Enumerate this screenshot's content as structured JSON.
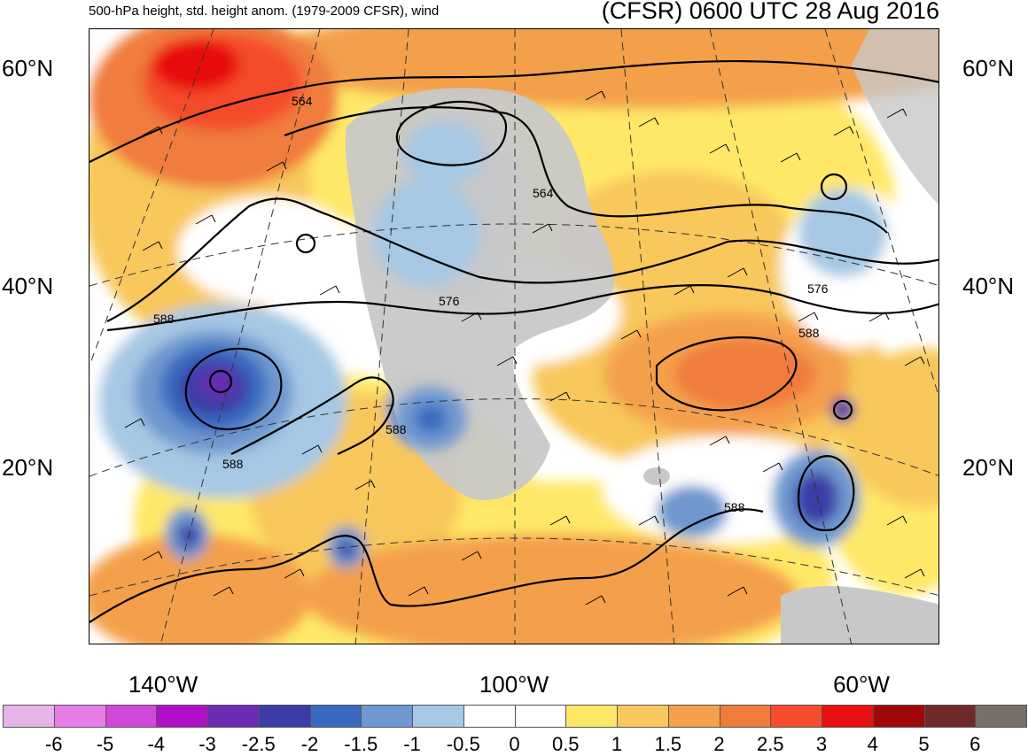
{
  "header": {
    "subtitle": "500-hPa height, std. height anom. (1979-2009 CFSR), wind",
    "title": "(CFSR) 0600 UTC 28 Aug 2016"
  },
  "map": {
    "lat_labels": [
      "60°N",
      "40°N",
      "20°N"
    ],
    "lon_labels": [
      "140°W",
      "100°W",
      "60°W"
    ],
    "contour_labels": [
      "564",
      "564",
      "576",
      "576",
      "588",
      "588",
      "588",
      "588",
      "588"
    ],
    "land_color": "#c8c8c8",
    "contour_color": "#000000"
  },
  "colorbar": {
    "colors": [
      "#e6b4e6",
      "#e67de6",
      "#d048d8",
      "#b010c8",
      "#6a2cb4",
      "#3c3ca8",
      "#3a6abf",
      "#6e98cf",
      "#a6c8e4",
      "#ffffff",
      "#ffffff",
      "#ffe868",
      "#f8c85c",
      "#f4a04c",
      "#f07c3c",
      "#f44c2c",
      "#e81010",
      "#a00808",
      "#702828",
      "#786e6a"
    ],
    "labels": [
      "-6",
      "-5",
      "-4",
      "-3",
      "-2.5",
      "-2",
      "-1.5",
      "-1",
      "-0.5",
      "0",
      "0.5",
      "1",
      "1.5",
      "2",
      "2.5",
      "3",
      "4",
      "5",
      "6"
    ]
  }
}
